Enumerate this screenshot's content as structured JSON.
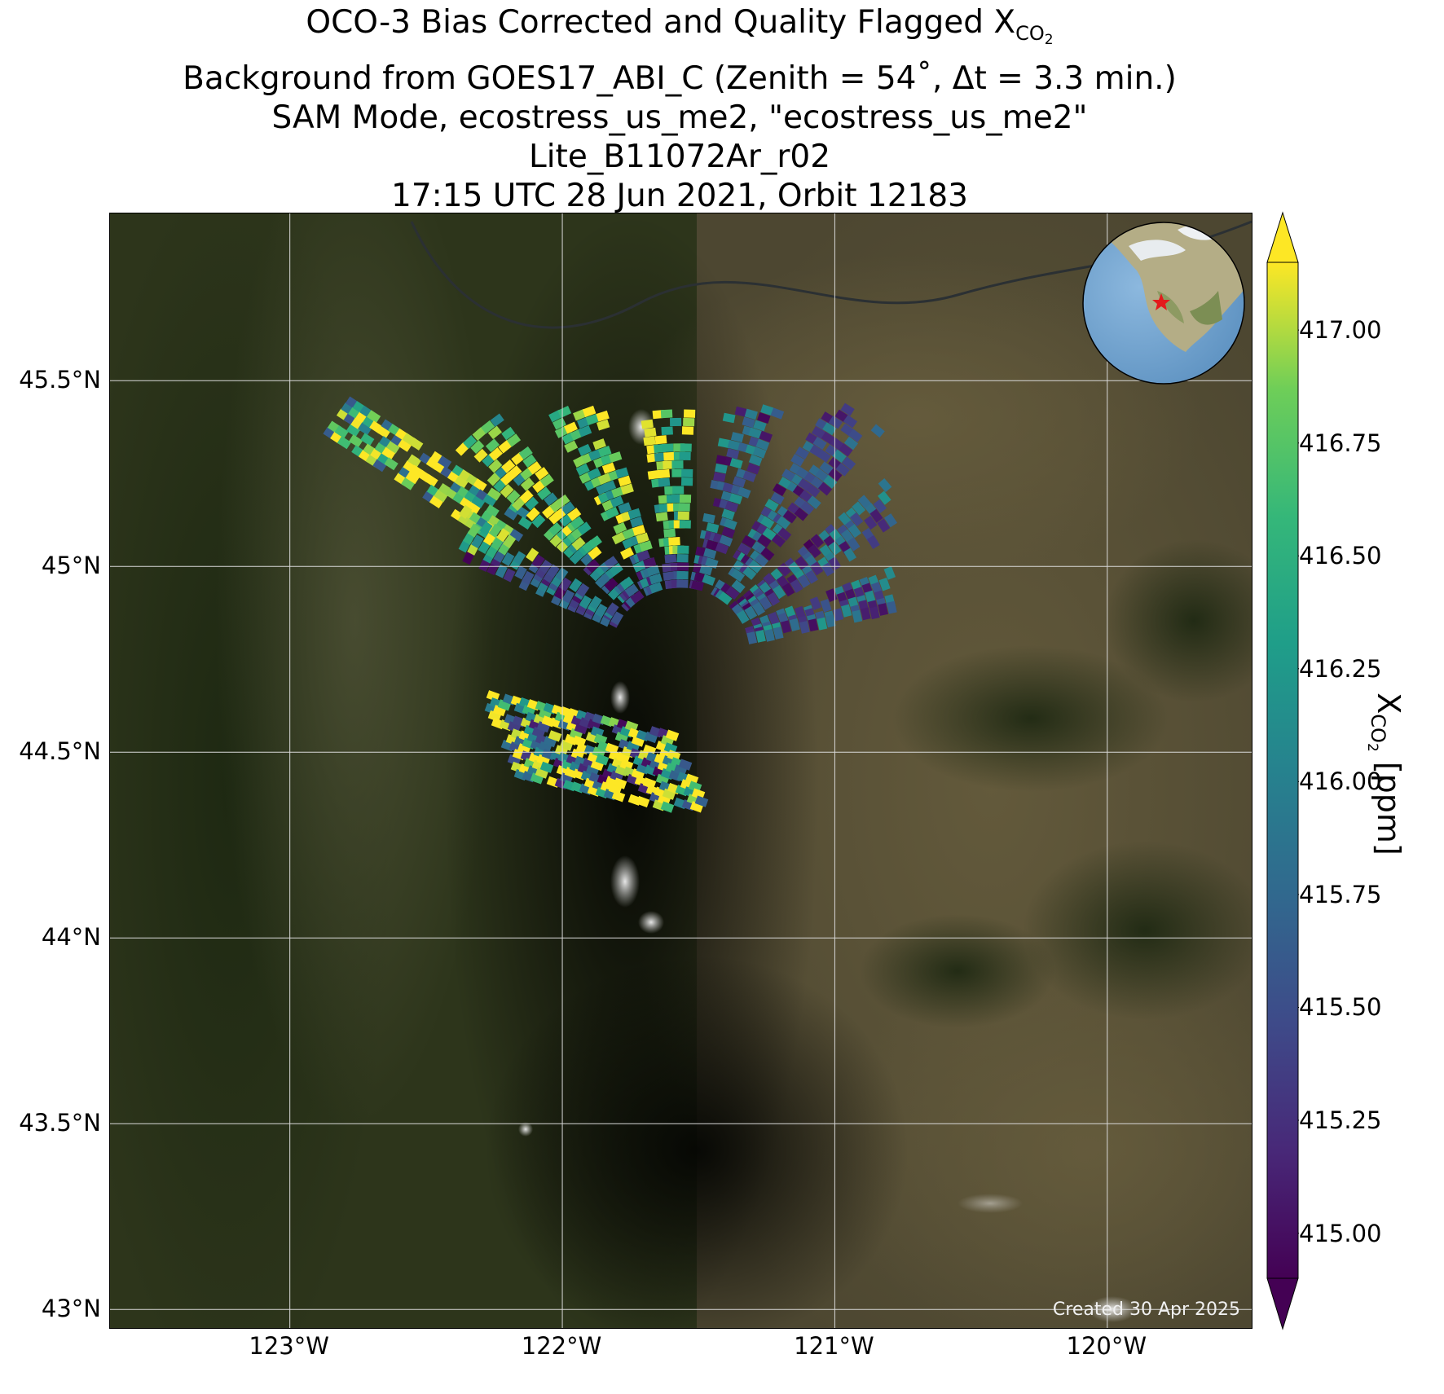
{
  "title": {
    "line1_text": "OCO-3 Bias Corrected and Quality Flagged X",
    "line1_sub": "CO",
    "line1_subsub": "2",
    "line2": "Background from GOES17_ABI_C (Zenith = 54$^\\circ$, Δt =  3.3 min.)",
    "line2_display": "Background from GOES17_ABI_C (Zenith = 54˚, Δt =  3.3 min.)",
    "line3": "SAM Mode, ecostress_us_me2, \"ecostress_us_me2\"",
    "line4": "Lite_B11072Ar_r02",
    "line5": "17:15 UTC 28 Jun 2021, Orbit 12183"
  },
  "map": {
    "lat_labels": [
      "45.5°N",
      "45°N",
      "44.5°N",
      "44°N",
      "43.5°N",
      "43°N"
    ],
    "lat_values": [
      45.5,
      45.0,
      44.5,
      44.0,
      43.5,
      43.0
    ],
    "lon_labels": [
      "123°W",
      "122°W",
      "121°W",
      "120°W"
    ],
    "lon_values": [
      -123,
      -122,
      -121,
      -120
    ],
    "extent": {
      "lon_min": -123.66,
      "lon_max": -119.47,
      "lat_min": 42.95,
      "lat_max": 45.95
    },
    "created_note": "Created 30 Apr 2025",
    "inset_globe_marker": "red-star",
    "colors": {
      "forest": "#1f2a14",
      "dry_land": "#5e5538",
      "cascade_dark": "#0b0d06",
      "ocean": "#6b9fcc",
      "grid": "#d9d9d9"
    }
  },
  "colorbar": {
    "label_main": "X",
    "label_sub": "CO",
    "label_subsub": "2",
    "label_unit": " [ppm]",
    "ticks": [
      "415.00",
      "415.25",
      "415.50",
      "415.75",
      "416.00",
      "416.25",
      "416.50",
      "416.75",
      "417.00"
    ],
    "tick_values": [
      415.0,
      415.25,
      415.5,
      415.75,
      416.0,
      416.25,
      416.5,
      416.75,
      417.0
    ],
    "vmin": 414.9,
    "vmax": 417.15,
    "colormap": "viridis",
    "extend": "both"
  }
}
